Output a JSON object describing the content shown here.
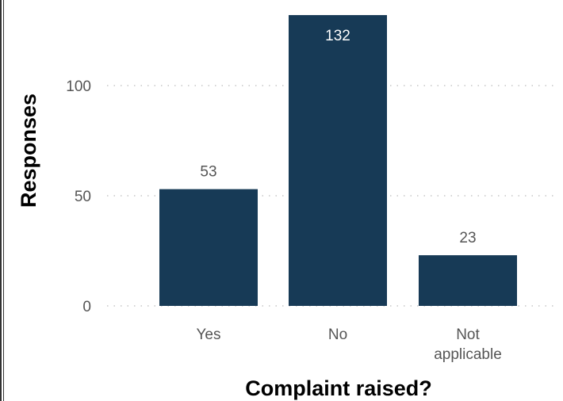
{
  "chart_data": {
    "type": "bar",
    "categories": [
      [
        "Yes"
      ],
      [
        "No"
      ],
      [
        "Not",
        "applicable"
      ]
    ],
    "values": [
      53,
      132,
      23
    ],
    "xlabel": "Complaint raised?",
    "ylabel": "Responses",
    "ylim": [
      0,
      135
    ],
    "yticks": [
      0,
      50,
      100
    ],
    "grid": "horizontal-dotted",
    "bar_color": "#173a56",
    "inside_label_color": "#ffffff",
    "outside_label_color": "#555555",
    "grid_color": "#bbbbbb"
  }
}
